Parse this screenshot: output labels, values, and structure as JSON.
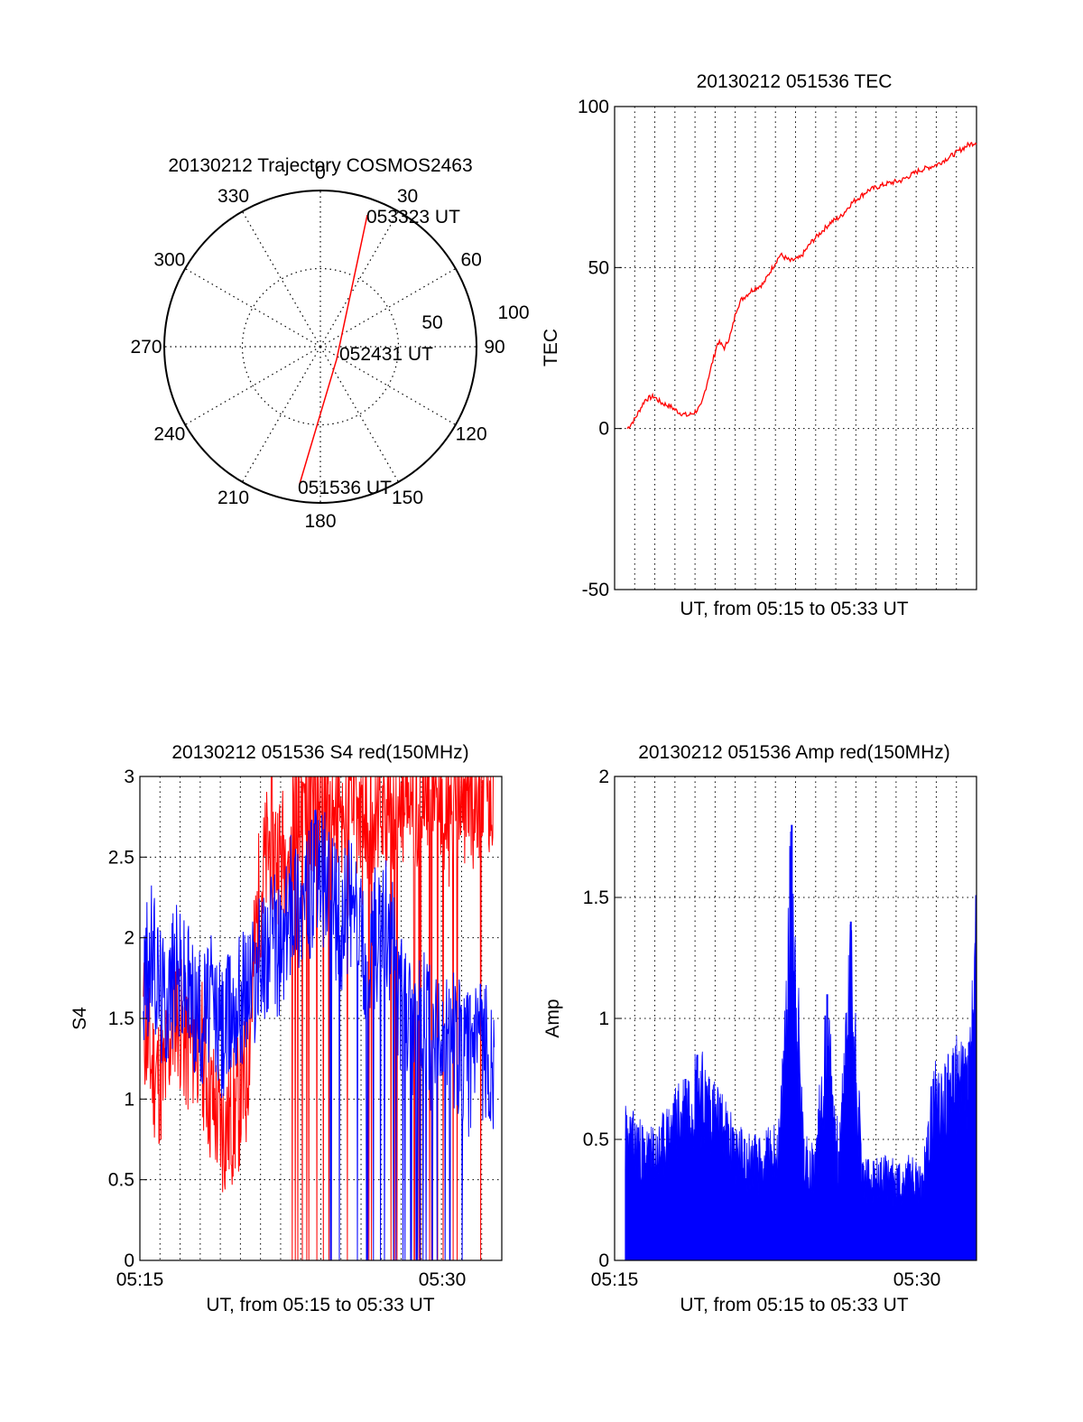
{
  "chart_data": [
    {
      "type": "polar",
      "title": "20130212 Trajectory COSMOS2463",
      "angle_labels": [
        "0",
        "30",
        "60",
        "90",
        "120",
        "150",
        "180",
        "210",
        "240",
        "270",
        "300",
        "330"
      ],
      "radial_labels": [
        "50",
        "100"
      ],
      "radial_range": [
        0,
        100
      ],
      "grid": true,
      "series": [
        {
          "color": "#ff0000",
          "points": [
            {
              "azimuth": 16.5,
              "elevation": 33
            },
            {
              "azimuth": 100,
              "elevation": 90
            },
            {
              "azimuth": 190,
              "elevation": 32
            }
          ]
        }
      ],
      "annotations": [
        {
          "text": "053323 UT",
          "azimuth": 27,
          "elevation": 38
        },
        {
          "text": "052431 UT",
          "azimuth": 100,
          "elevation": 76
        },
        {
          "text": "051536 UT",
          "azimuth": 175,
          "elevation": 30
        }
      ]
    },
    {
      "type": "line",
      "title": "20130212 051536 TEC",
      "xlabel": "UT, from 05:15 to 05:33 UT",
      "ylabel": "TEC",
      "xlim": [
        5.25,
        5.5564
      ],
      "ylim": [
        -50,
        100
      ],
      "yticks": [
        "100",
        "50",
        "0",
        "-50"
      ],
      "grid": true,
      "series": [
        {
          "color": "#ff0000",
          "x": [
            5.2608,
            5.2672,
            5.2759,
            5.2831,
            5.2894,
            5.2967,
            5.3046,
            5.3119,
            5.3175,
            5.3233,
            5.3295,
            5.3375,
            5.3433,
            5.3489,
            5.3532,
            5.3572,
            5.3664,
            5.3761,
            5.3836,
            5.3903,
            5.3988,
            5.4071,
            5.4168,
            5.4248,
            5.4329,
            5.442,
            5.4506,
            5.4649,
            5.48,
            5.4925,
            5.5071,
            5.5231,
            5.5364,
            5.549,
            5.5564
          ],
          "y": [
            0,
            3,
            9,
            10,
            8,
            7,
            5,
            4,
            5,
            7,
            16,
            27,
            25,
            30,
            37,
            40,
            43,
            45,
            50,
            54,
            52,
            53,
            58,
            61,
            64,
            66,
            70,
            74,
            76,
            77,
            80,
            82,
            85,
            88,
            89
          ]
        }
      ]
    },
    {
      "type": "line",
      "title": "20130212 051536 S4 red(150MHz)",
      "xlabel": "UT, from 05:15 to 05:33 UT",
      "ylabel": "S4",
      "xlim": [
        5.25,
        5.5564
      ],
      "ylim": [
        0,
        3
      ],
      "xticks": [
        "05:15",
        "05:30"
      ],
      "yticks": [
        "3",
        "2.5",
        "2",
        "1.5",
        "1",
        "0.5",
        "0"
      ],
      "grid": true,
      "series": [
        {
          "color": "#ff0000",
          "x": [
            5.253,
            5.26,
            5.27,
            5.28,
            5.29,
            5.3,
            5.31,
            5.32,
            5.33,
            5.34,
            5.35,
            5.36,
            5.37,
            5.38,
            5.39,
            5.4,
            5.41,
            5.42,
            5.43,
            5.44,
            5.45,
            5.46,
            5.47,
            5.48,
            5.49,
            5.5,
            5.51,
            5.52,
            5.53,
            5.54,
            5.55
          ],
          "y": [
            1.5,
            1.2,
            1.1,
            1.6,
            1.3,
            1.4,
            1.0,
            0.8,
            0.9,
            1.1,
            2.2,
            2.6,
            2.5,
            2.7,
            2.9,
            2.8,
            2.9,
            2.7,
            2.9,
            2.6,
            2.9,
            2.8,
            2.9,
            2.8,
            2.9,
            3.0,
            2.7,
            2.9,
            2.8,
            3.0,
            2.9
          ]
        },
        {
          "color": "#0000ff",
          "x": [
            5.253,
            5.26,
            5.27,
            5.28,
            5.29,
            5.3,
            5.31,
            5.32,
            5.33,
            5.34,
            5.35,
            5.36,
            5.37,
            5.38,
            5.39,
            5.4,
            5.41,
            5.42,
            5.43,
            5.44,
            5.45,
            5.46,
            5.47,
            5.48,
            5.49,
            5.5,
            5.51,
            5.52,
            5.53,
            5.54,
            5.55
          ],
          "y": [
            1.7,
            1.9,
            1.6,
            1.8,
            1.7,
            1.5,
            1.6,
            1.4,
            1.6,
            1.7,
            1.8,
            2.0,
            1.9,
            2.3,
            2.2,
            2.4,
            2.3,
            2.1,
            2.2,
            1.9,
            2.0,
            2.1,
            1.6,
            1.4,
            1.5,
            1.3,
            1.4,
            1.3,
            1.2,
            1.3,
            1.2
          ]
        }
      ]
    },
    {
      "type": "bar",
      "title": "20130212 051536 Amp red(150MHz)",
      "xlabel": "UT, from 05:15 to 05:33 UT",
      "ylabel": "Amp",
      "xlim": [
        5.25,
        5.5564
      ],
      "ylim": [
        0,
        2
      ],
      "xticks": [
        "05:15",
        "05:30"
      ],
      "yticks": [
        "2",
        "1.5",
        "1",
        "0.5",
        "0"
      ],
      "grid": true,
      "series": [
        {
          "color": "#0000ff",
          "x": [
            5.26,
            5.27,
            5.28,
            5.29,
            5.3,
            5.31,
            5.32,
            5.33,
            5.34,
            5.35,
            5.36,
            5.37,
            5.38,
            5.39,
            5.4,
            5.41,
            5.42,
            5.43,
            5.44,
            5.45,
            5.46,
            5.47,
            5.48,
            5.49,
            5.5,
            5.51,
            5.52,
            5.53,
            5.54,
            5.55,
            5.556
          ],
          "y": [
            0.6,
            0.55,
            0.5,
            0.55,
            0.65,
            0.75,
            0.85,
            0.75,
            0.65,
            0.55,
            0.5,
            0.48,
            0.5,
            0.55,
            1.8,
            0.5,
            0.45,
            1.1,
            0.45,
            1.4,
            0.4,
            0.38,
            0.4,
            0.38,
            0.4,
            0.35,
            0.75,
            0.8,
            0.85,
            0.9,
            1.4
          ]
        }
      ]
    }
  ]
}
